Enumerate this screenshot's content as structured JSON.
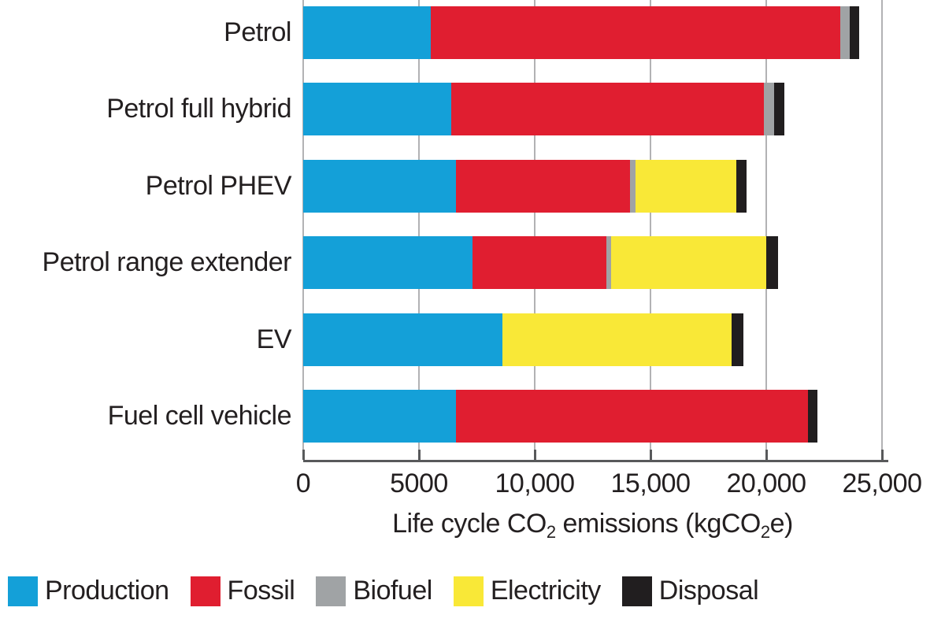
{
  "chart_data": {
    "type": "bar",
    "orientation": "horizontal",
    "stacked": true,
    "title": "",
    "categories": [
      "Petrol",
      "Petrol full hybrid",
      "Petrol PHEV",
      "Petrol range extender",
      "EV",
      "Fuel cell vehicle"
    ],
    "series": [
      {
        "name": "Production",
        "color": "#14A0D8",
        "values": [
          5500,
          6400,
          6600,
          7300,
          8600,
          6600
        ]
      },
      {
        "name": "Fossil",
        "color": "#E01E30",
        "values": [
          17700,
          13500,
          7500,
          5800,
          0,
          15200
        ]
      },
      {
        "name": "Biofuel",
        "color": "#A0A3A5",
        "values": [
          400,
          450,
          250,
          200,
          0,
          0
        ]
      },
      {
        "name": "Electricity",
        "color": "#F9E837",
        "values": [
          0,
          0,
          4350,
          6700,
          9900,
          0
        ]
      },
      {
        "name": "Disposal",
        "color": "#211E1F",
        "values": [
          400,
          450,
          450,
          500,
          500,
          400
        ]
      }
    ],
    "totals": [
      24000,
      20800,
      19150,
      20500,
      19000,
      22200
    ],
    "xlabel_plain": "Life cycle CO2 emissions (kgCO2e)",
    "xlabel_parts": [
      {
        "text": "Life cycle CO"
      },
      {
        "text": "2",
        "sub": true
      },
      {
        "text": " emissions (kgCO"
      },
      {
        "text": "2",
        "sub": true
      },
      {
        "text": "e)"
      }
    ],
    "x_ticks": [
      0,
      5000,
      10000,
      15000,
      20000,
      25000
    ],
    "x_tick_labels": [
      "0",
      "5000",
      "10,000",
      "15,000",
      "20,000",
      "25,000"
    ],
    "xlim": [
      0,
      25000
    ],
    "grid": true,
    "legend_position": "bottom-left"
  },
  "colors": {
    "background": "#FFFFFF",
    "text": "#231F20",
    "axis": "#58595B",
    "gridline": "#B2B2B4"
  }
}
